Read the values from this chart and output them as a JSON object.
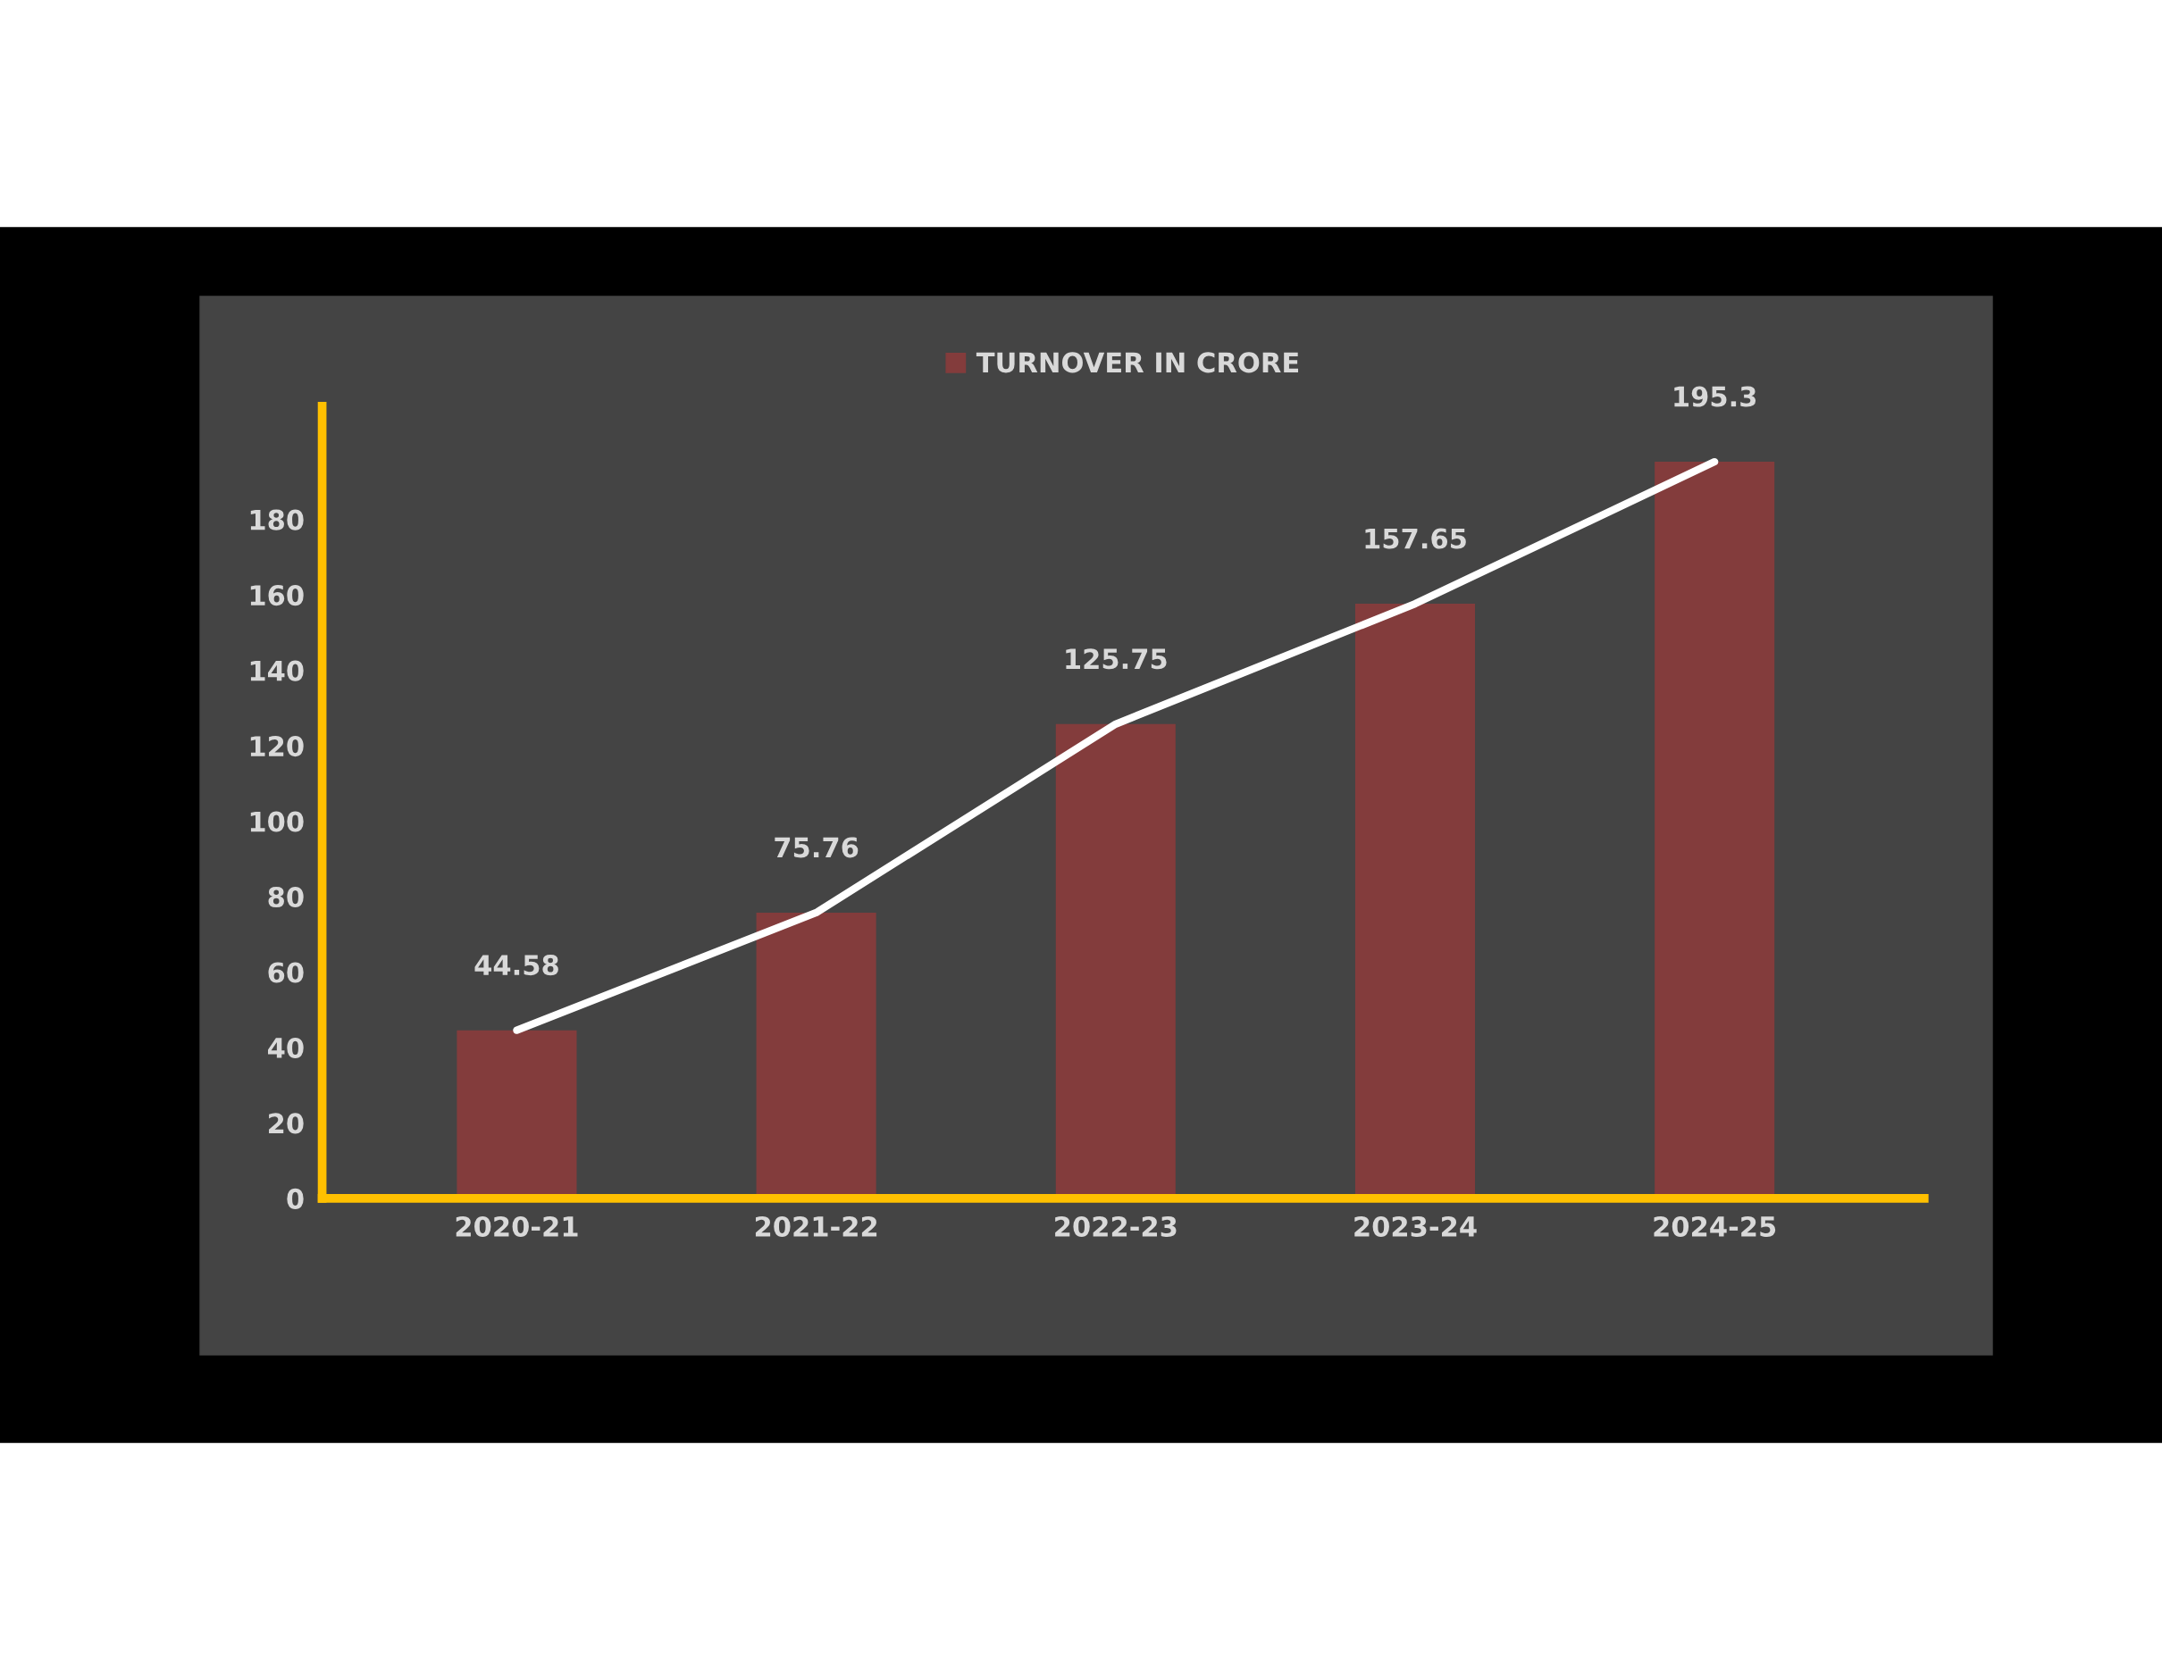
{
  "chart_data": {
    "type": "bar",
    "categories": [
      "2020-21",
      "2021-22",
      "2022-23",
      "2023-24",
      "2024-25"
    ],
    "series": [
      {
        "name": "TURNOVER IN CRORE",
        "color": "#833c3c",
        "values": [
          44.58,
          75.76,
          125.75,
          157.65,
          195.3
        ],
        "value_labels": [
          "44.58",
          "75.76",
          "125.75",
          "157.65",
          "195.3"
        ]
      },
      {
        "type": "line",
        "color": "#ffffff",
        "values": [
          44.58,
          75.76,
          125.75,
          157.65,
          195.3
        ]
      }
    ],
    "ylim": [
      0,
      210
    ],
    "yticks": [
      0,
      20,
      40,
      60,
      80,
      100,
      120,
      140,
      160,
      180
    ],
    "legend": "top",
    "grid": false,
    "marker": "none",
    "line_style": "solid"
  }
}
